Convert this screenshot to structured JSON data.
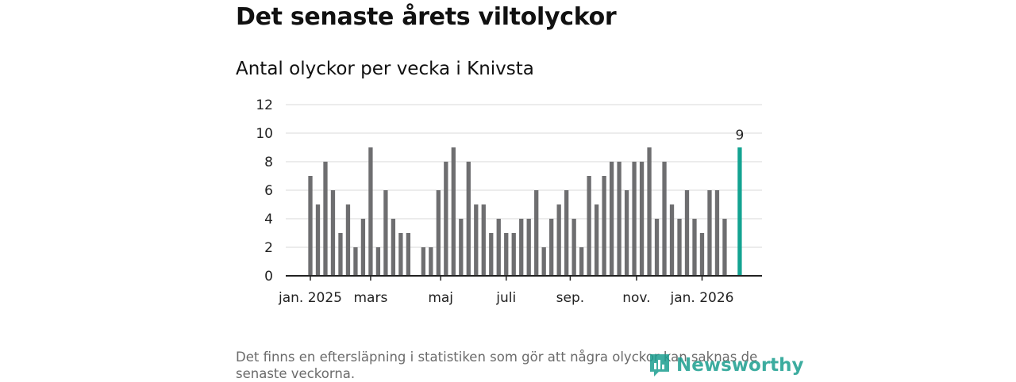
{
  "header": {
    "title": "Det senaste årets viltolyckor",
    "subtitle": "Antal olyckor per vecka i Knivsta"
  },
  "footnote": "Det finns en eftersläpning i statistiken som gör att några olyckor kan saknas de senaste veckorna.",
  "logo": {
    "text": "Newsworthy"
  },
  "colors": {
    "bar": "#6e6e70",
    "highlight": "#13a391",
    "grid": "#d9d9d9",
    "axis": "#222222"
  },
  "chart_data": {
    "type": "bar",
    "title": "Antal olyckor per vecka i Knivsta",
    "xlabel": "",
    "ylabel": "",
    "ylim": [
      0,
      12
    ],
    "yticks": [
      0,
      2,
      4,
      6,
      8,
      10,
      12
    ],
    "values": [
      7,
      5,
      8,
      6,
      3,
      5,
      2,
      4,
      9,
      2,
      6,
      4,
      3,
      3,
      null,
      2,
      2,
      6,
      8,
      9,
      4,
      8,
      5,
      5,
      3,
      4,
      3,
      3,
      4,
      4,
      6,
      2,
      4,
      5,
      6,
      4,
      2,
      7,
      5,
      7,
      8,
      8,
      6,
      8,
      8,
      9,
      4,
      8,
      5,
      4,
      6,
      4,
      3,
      6,
      6,
      4,
      null,
      9
    ],
    "highlight_index": 57,
    "highlight_label": "9",
    "x_ticks": [
      {
        "label": "jan. 2025",
        "index": 0
      },
      {
        "label": "mars",
        "index": 8
      },
      {
        "label": "maj",
        "index": 17.3
      },
      {
        "label": "juli",
        "index": 26
      },
      {
        "label": "sep.",
        "index": 34.5
      },
      {
        "label": "nov.",
        "index": 43.3
      },
      {
        "label": "jan. 2026",
        "index": 52
      }
    ]
  }
}
